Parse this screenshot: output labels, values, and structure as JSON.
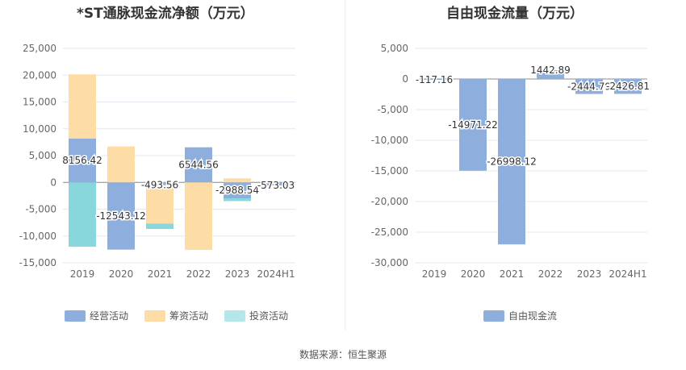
{
  "left_chart": {
    "title": "*ST通脉现金流净额（万元）",
    "legend": [
      {
        "label": "经营活动",
        "color": "#8eaedd"
      },
      {
        "label": "筹资活动",
        "color": "#fddca6"
      },
      {
        "label": "投资活动",
        "color": "#b4e7ea"
      }
    ]
  },
  "right_chart": {
    "title": "自由现金流量（万元）",
    "legend": [
      {
        "label": "自由现金流",
        "color": "#8eaedd"
      }
    ]
  },
  "source": "数据来源：恒生聚源",
  "chart_data": [
    {
      "type": "bar",
      "stacked": true,
      "title": "*ST通脉现金流净额（万元）",
      "categories": [
        "2019",
        "2020",
        "2021",
        "2022",
        "2023",
        "2024H1"
      ],
      "yticks": [
        "25,000",
        "20,000",
        "15,000",
        "10,000",
        "5,000",
        "0",
        "-5,000",
        "-10,000",
        "-15,000"
      ],
      "ylim": [
        -15000,
        25000
      ],
      "series": [
        {
          "name": "经营活动",
          "color": "#8eaedd",
          "values": [
            8156.42,
            -12543.12,
            -493.56,
            6544.56,
            -2988.54,
            -573.03
          ]
        },
        {
          "name": "筹资活动",
          "color": "#fddca6",
          "values": [
            12000,
            6700,
            -7200,
            -12600,
            750,
            0
          ]
        },
        {
          "name": "投资活动",
          "color": "#87d7dc",
          "values": [
            -12000,
            0,
            -1000,
            0,
            -500,
            0
          ]
        }
      ],
      "data_labels": [
        "8156.42",
        "-12543.12",
        "-493.56",
        "6544.56",
        "-2988.54",
        "-573.03"
      ]
    },
    {
      "type": "bar",
      "title": "自由现金流量（万元）",
      "categories": [
        "2019",
        "2020",
        "2021",
        "2022",
        "2023",
        "2024H1"
      ],
      "yticks": [
        "5,000",
        "0",
        "-5,000",
        "-10,000",
        "-15,000",
        "-20,000",
        "-25,000",
        "-30,000"
      ],
      "ylim": [
        -30000,
        5000
      ],
      "series": [
        {
          "name": "自由现金流",
          "color": "#8eaedd",
          "values": [
            -117.16,
            -14971.22,
            -26998.12,
            1442.89,
            -2444.79,
            -2426.81
          ]
        }
      ],
      "data_labels": [
        "-117.16",
        "-14971.22",
        "-26998.12",
        "1442.89",
        "-2444.79",
        "-2426.81"
      ]
    }
  ]
}
